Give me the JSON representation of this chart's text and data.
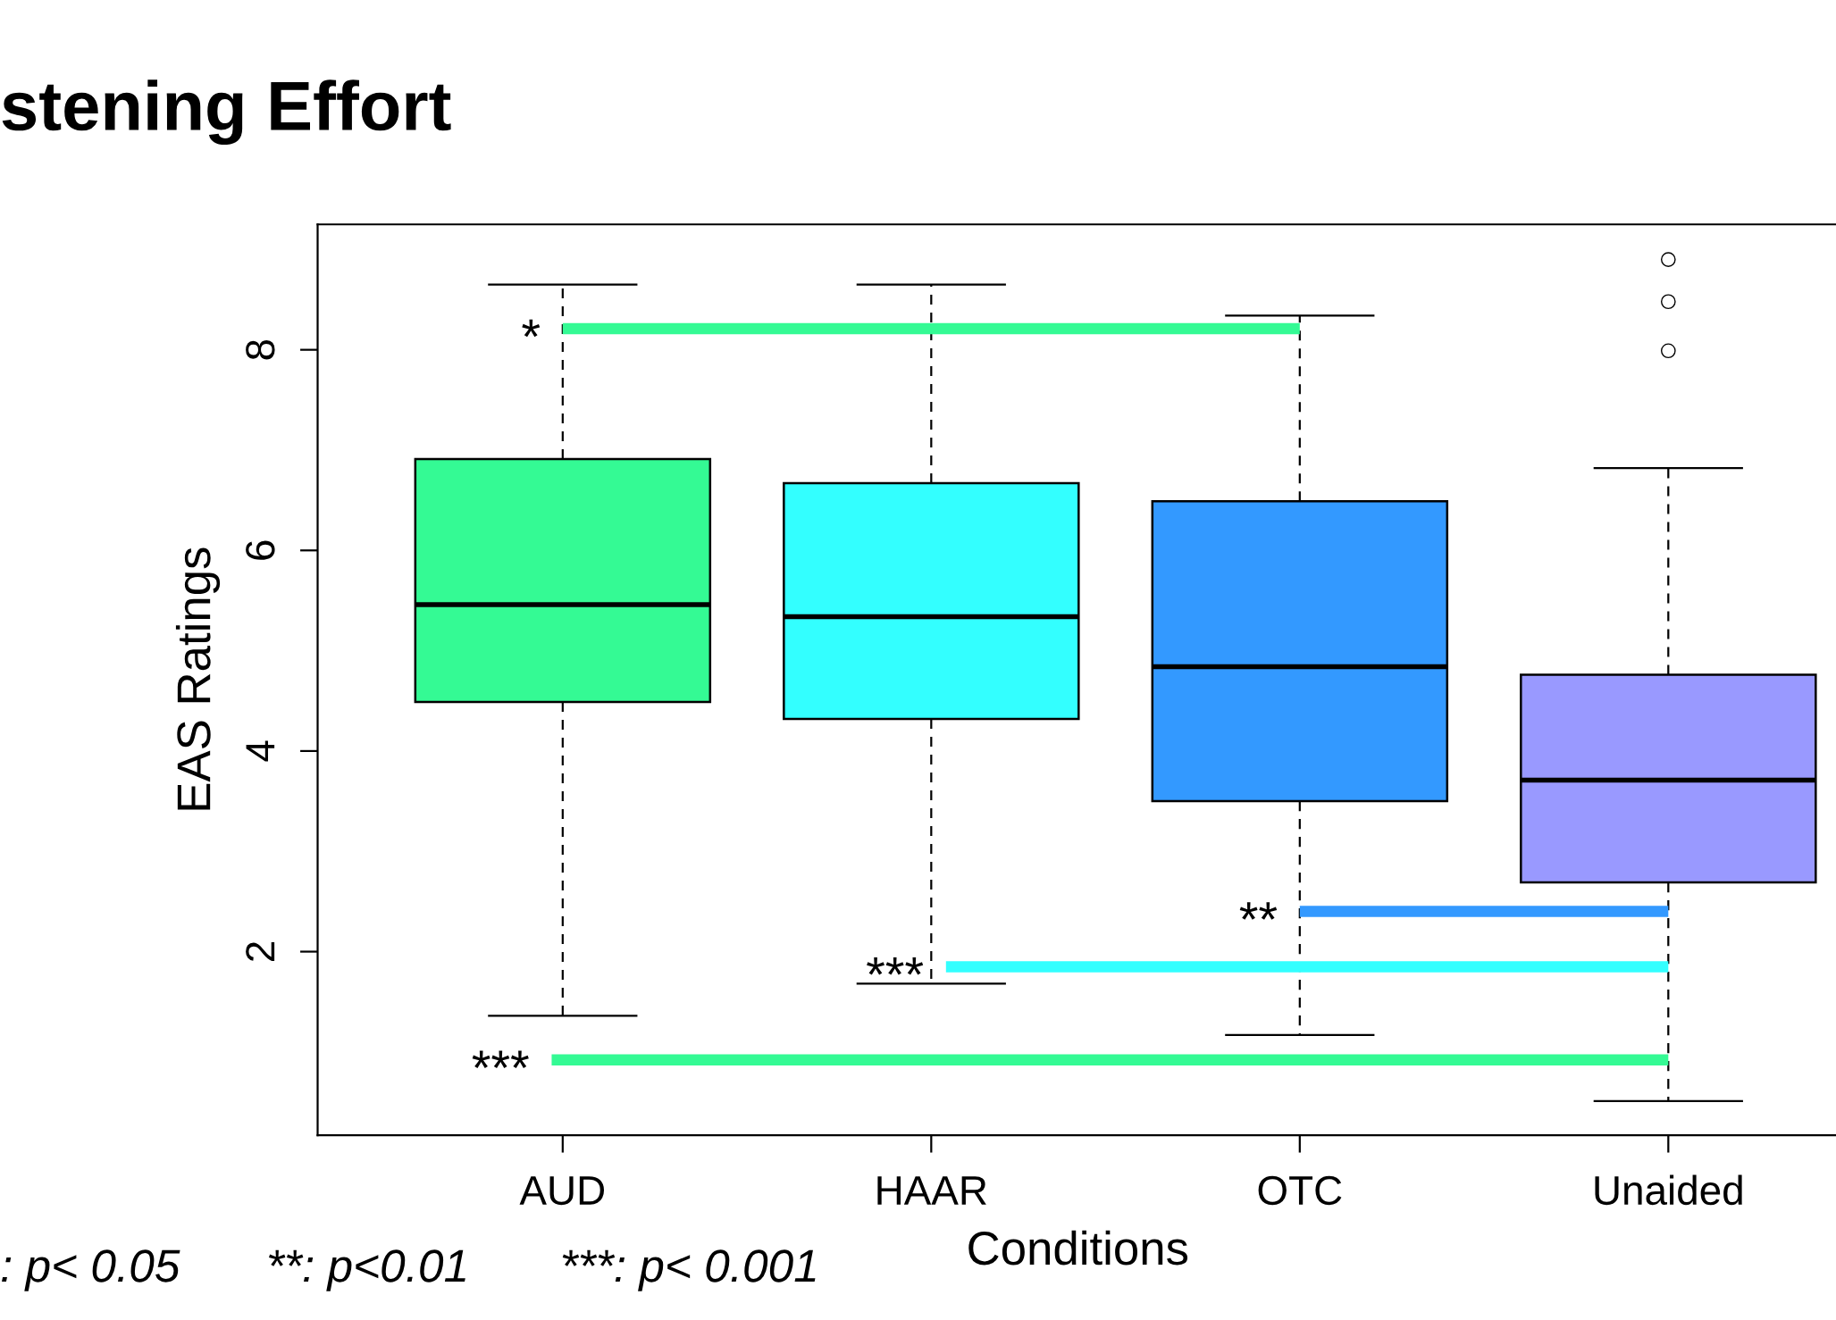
{
  "chart_data": {
    "type": "box",
    "title": "stening Effort",
    "xlabel": "Conditions",
    "ylabel": "EAS Ratings",
    "categories": [
      "AUD",
      "HAAR",
      "OTC",
      "Unaided"
    ],
    "colors": [
      "#34fa94",
      "#33ffff",
      "#3399ff",
      "#9999ff"
    ],
    "boxes": [
      {
        "low": 1.36,
        "q1": 4.49,
        "median": 5.46,
        "q3": 6.91,
        "high": 8.65
      },
      {
        "low": 1.68,
        "q1": 4.32,
        "median": 5.34,
        "q3": 6.67,
        "high": 8.65
      },
      {
        "low": 1.17,
        "q1": 3.5,
        "median": 4.84,
        "q3": 6.49,
        "high": 8.34
      },
      {
        "low": 0.51,
        "q1": 2.69,
        "median": 3.71,
        "q3": 4.76,
        "high": 6.82,
        "outliers": [
          7.99,
          8.48,
          8.9
        ]
      }
    ],
    "ylim": [
      0.17,
      9.25
    ],
    "yticks": [
      2,
      4,
      6,
      8
    ],
    "grid": false,
    "legend": false,
    "annotations": [
      {
        "text": "*",
        "x": "OTC",
        "y": 8.21
      },
      {
        "text": "**",
        "x": "Unaided",
        "y": 2.4
      },
      {
        "text": "***",
        "x": "Unaided",
        "y": 1.85
      },
      {
        "text": "***",
        "x": "Unaided",
        "y": 0.92
      },
      ": p< 0.05",
      "**: p<0.01",
      "***: p< 0.001"
    ]
  }
}
